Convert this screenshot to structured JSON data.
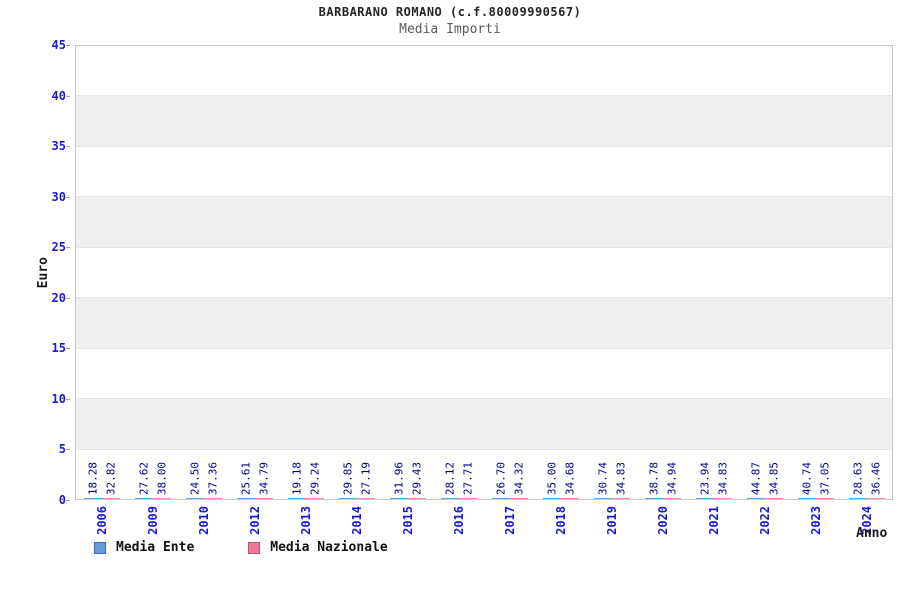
{
  "title": "BARBARANO ROMANO (c.f.80009990567)",
  "subtitle": "Media Importi",
  "chart_data": {
    "type": "bar",
    "categories": [
      "2006",
      "2009",
      "2010",
      "2012",
      "2013",
      "2014",
      "2015",
      "2016",
      "2017",
      "2018",
      "2019",
      "2020",
      "2021",
      "2022",
      "2023",
      "2024"
    ],
    "series": [
      {
        "name": "Media Ente",
        "values": [
          18.28,
          27.62,
          24.5,
          25.61,
          19.18,
          29.85,
          31.96,
          28.12,
          26.7,
          35.0,
          30.74,
          38.78,
          23.94,
          44.87,
          40.74,
          28.63
        ]
      },
      {
        "name": "Media Nazionale",
        "values": [
          32.82,
          38.0,
          37.36,
          34.79,
          29.24,
          27.19,
          29.43,
          27.71,
          34.32,
          34.68,
          34.83,
          34.94,
          34.83,
          34.85,
          37.05,
          36.46
        ]
      }
    ],
    "xlabel": "Anno",
    "ylabel": "Euro",
    "ylim": [
      0,
      45
    ],
    "yticks": [
      0,
      5,
      10,
      15,
      20,
      25,
      30,
      35,
      40,
      45
    ],
    "value_labels": "shown above each bar, rotated 90°, two decimals",
    "legend_position": "bottom-left",
    "background": "alternating horizontal white/light-gray bands every 5 units, white band at top"
  },
  "colors": {
    "bar_ente_main": "#00cc00",
    "bar_ente_border": "#55aaee",
    "bar_nazionale_main": "#e04040",
    "bar_nazionale_border": "#ff87ad",
    "legend_ente": "#6699dd",
    "legend_nazionale": "#ee7799",
    "value_label": "#00008b",
    "axis_tick_label": "#1a1ad2",
    "band_gray": "#f0f0f0"
  }
}
